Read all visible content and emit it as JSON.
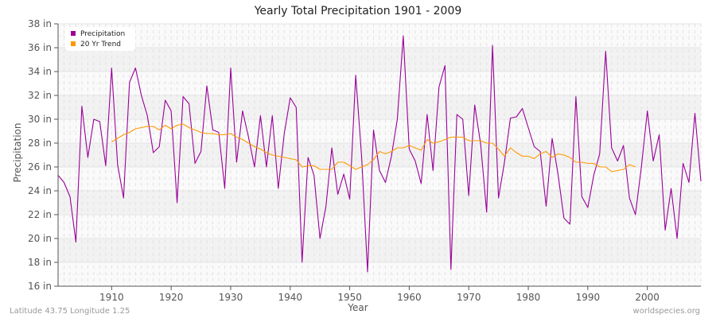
{
  "header": {
    "title": "Yearly Total Precipitation 1901 - 2009"
  },
  "footer": {
    "left": "Latitude 43.75 Longitude 1.25",
    "right": "worldspecies.org"
  },
  "colors": {
    "precipitation": "#990099",
    "trend": "#ff9900",
    "band_dark": "#f2f2f2",
    "band_light": "#fafafa",
    "grid": "#dddddd",
    "axis": "#555555"
  },
  "chart_data": {
    "type": "line",
    "title": "Yearly Total Precipitation 1901 - 2009",
    "xlabel": "Year",
    "ylabel": "Precipitation",
    "xlim": [
      1901,
      2009
    ],
    "ylim": [
      16,
      38
    ],
    "x_ticks": [
      1910,
      1920,
      1930,
      1940,
      1950,
      1960,
      1970,
      1980,
      1990,
      2000
    ],
    "y_ticks": [
      16,
      18,
      20,
      22,
      24,
      26,
      28,
      30,
      32,
      34,
      36,
      38
    ],
    "y_tick_labels": [
      "16 in",
      "18 in",
      "20 in",
      "22 in",
      "24 in",
      "26 in",
      "28 in",
      "30 in",
      "32 in",
      "34 in",
      "36 in",
      "38 in"
    ],
    "legend": {
      "position": "top-left",
      "entries": [
        "Precipitation",
        "20 Yr Trend"
      ]
    },
    "grid": true,
    "series": [
      {
        "name": "Precipitation",
        "color": "#990099",
        "x_start": 1901,
        "values": [
          25.3,
          24.7,
          23.5,
          19.7,
          31.1,
          26.8,
          30.0,
          29.8,
          26.1,
          34.3,
          26.2,
          23.4,
          33.1,
          34.3,
          32.0,
          30.3,
          27.2,
          27.7,
          31.6,
          30.7,
          23.0,
          31.9,
          31.3,
          26.3,
          27.3,
          32.8,
          29.1,
          28.9,
          24.2,
          34.3,
          26.4,
          30.7,
          28.5,
          26.0,
          30.3,
          26.0,
          30.3,
          24.2,
          28.8,
          31.8,
          31.0,
          18.0,
          26.8,
          25.3,
          20.0,
          22.7,
          27.6,
          23.7,
          25.4,
          23.3,
          33.7,
          26.8,
          17.2,
          29.1,
          25.7,
          24.7,
          26.9,
          30.0,
          37.0,
          27.5,
          26.5,
          24.6,
          30.4,
          25.7,
          32.7,
          34.5,
          17.4,
          30.4,
          30.0,
          23.6,
          31.2,
          27.9,
          22.2,
          36.2,
          23.4,
          26.4,
          30.1,
          30.2,
          30.9,
          29.3,
          27.7,
          27.3,
          22.7,
          28.4,
          25.4,
          21.7,
          21.2,
          31.9,
          23.5,
          22.6,
          25.3,
          27.1,
          35.7,
          27.6,
          26.5,
          27.8,
          23.4,
          22.0,
          26.0,
          30.7,
          26.5,
          28.7,
          20.7,
          24.2,
          20.0,
          26.3,
          24.7,
          30.5,
          24.8
        ]
      },
      {
        "name": "20 Yr Trend",
        "color": "#ff9900",
        "x_start": 1910,
        "values": [
          28.1,
          28.4,
          28.7,
          28.9,
          29.2,
          29.3,
          29.4,
          29.4,
          29.1,
          29.5,
          29.2,
          29.5,
          29.6,
          29.3,
          29.1,
          28.9,
          28.8,
          28.8,
          28.7,
          28.7,
          28.8,
          28.5,
          28.3,
          28.0,
          27.7,
          27.5,
          27.2,
          27.0,
          26.9,
          26.8,
          26.7,
          26.6,
          26.0,
          26.1,
          26.1,
          25.8,
          25.8,
          25.8,
          26.4,
          26.4,
          26.1,
          25.8,
          26.0,
          26.2,
          26.6,
          27.3,
          27.1,
          27.3,
          27.6,
          27.6,
          27.8,
          27.6,
          27.4,
          28.3,
          28.0,
          28.1,
          28.3,
          28.5,
          28.5,
          28.5,
          28.2,
          28.2,
          28.2,
          28.0,
          28.0,
          27.5,
          26.9,
          27.6,
          27.2,
          26.9,
          26.9,
          26.7,
          27.1,
          27.3,
          26.8,
          27.1,
          27.0,
          26.8,
          26.4,
          26.4,
          26.3,
          26.3,
          26.0,
          26.0,
          25.6,
          25.7,
          25.8,
          26.2,
          26.0
        ]
      }
    ]
  }
}
